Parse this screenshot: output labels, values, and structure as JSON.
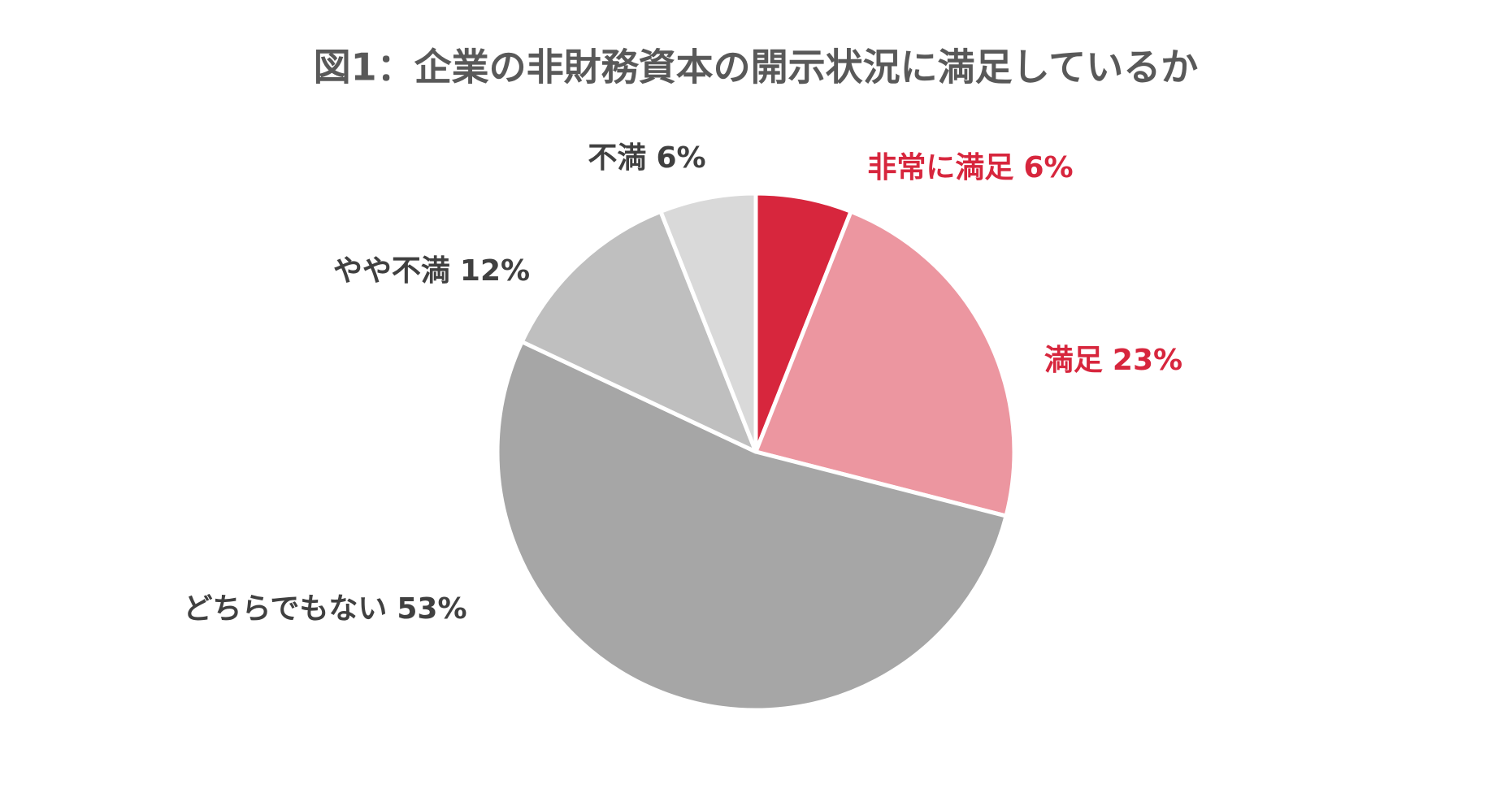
{
  "chart_data": {
    "type": "pie",
    "title": "図1：企業の非財務資本の開示状況に満足しているか",
    "categories": [
      "非常に満足",
      "満足",
      "どちらでもない",
      "やや不満",
      "不満"
    ],
    "values": [
      6,
      23,
      53,
      12,
      6
    ],
    "value_labels": [
      "6%",
      "23%",
      "53%",
      "12%",
      "6%"
    ],
    "colors": [
      "#d7263d",
      "#ec96a0",
      "#a6a6a6",
      "#bfbfbf",
      "#d9d9d9"
    ],
    "label_colors": [
      "#d7263d",
      "#d7263d",
      "#404040",
      "#404040",
      "#404040"
    ]
  }
}
